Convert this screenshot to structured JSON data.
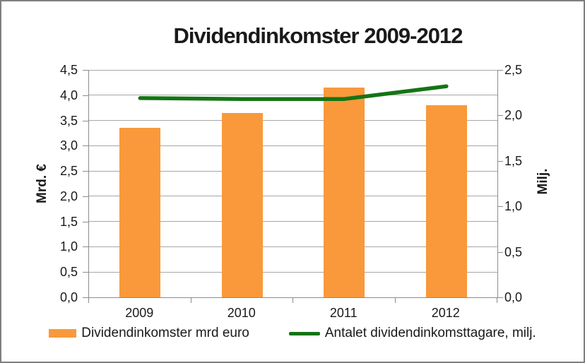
{
  "chart_title": "Dividendinkomster 2009-2012",
  "chart_data": {
    "type": "combo-bar-line",
    "title": "Dividendinkomster 2009-2012",
    "categories": [
      "2009",
      "2010",
      "2011",
      "2012"
    ],
    "series": [
      {
        "name": "Dividendinkomster mrd euro",
        "type": "bar",
        "axis": "left",
        "values": [
          3.35,
          3.65,
          4.15,
          3.8
        ],
        "color": "#F9993B"
      },
      {
        "name": "Antalet dividendinkomsttagare, milj.",
        "type": "line",
        "axis": "right",
        "values": [
          2.19,
          2.18,
          2.18,
          2.32
        ],
        "color": "#147414"
      }
    ],
    "left_axis": {
      "label": "Mrd. €",
      "min": 0,
      "max": 4.5,
      "step": 0.5,
      "tick_labels": [
        "0,0",
        "0,5",
        "1,0",
        "1,5",
        "2,0",
        "2,5",
        "3,0",
        "3,5",
        "4,0",
        "4,5"
      ]
    },
    "right_axis": {
      "label": "Milj.",
      "min": 0,
      "max": 2.5,
      "step": 0.5,
      "tick_labels": [
        "0,0",
        "0,5",
        "1,0",
        "1,5",
        "2,0",
        "2,5"
      ]
    },
    "grid": true,
    "legend_position": "bottom",
    "colors": {
      "gridline": "#A6A6A6",
      "axis_line": "#8C8C8C",
      "frame_border": "#7F7F7F",
      "text": "#1A1A1A",
      "background": "#FFFFFF"
    }
  }
}
